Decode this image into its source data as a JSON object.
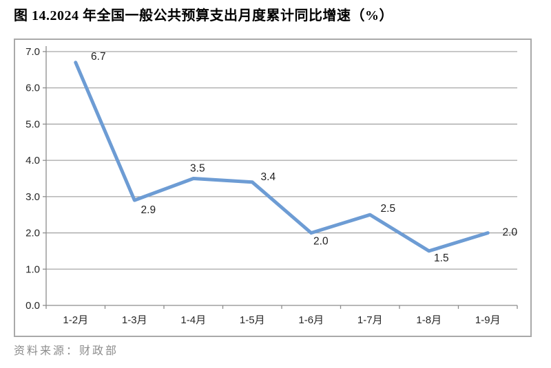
{
  "page": {
    "source_note": "资料来源：财政部"
  },
  "chart_data": {
    "type": "line",
    "title": "图 14.2024 年全国一般公共预算支出月度累计同比增速（%）",
    "categories": [
      "1-2月",
      "1-3月",
      "1-4月",
      "1-5月",
      "1-6月",
      "1-7月",
      "1-8月",
      "1-9月"
    ],
    "values": [
      6.7,
      2.9,
      3.5,
      3.4,
      2.0,
      2.5,
      1.5,
      2.0
    ],
    "data_labels": [
      "6.7",
      "2.9",
      "3.5",
      "3.4",
      "2.0",
      "2.5",
      "1.5",
      "2.0"
    ],
    "xlabel": "",
    "ylabel": "",
    "ylim": [
      0,
      7
    ],
    "ytick_step": 1,
    "ytick_labels": [
      "0.0",
      "1.0",
      "2.0",
      "3.0",
      "4.0",
      "5.0",
      "6.0",
      "7.0"
    ],
    "grid": "horizontal",
    "legend": "none",
    "colors": {
      "line": "#6d9cd4",
      "gridline": "#a6a6a6",
      "axis": "#8c8c8c",
      "tick": "#8c8c8c",
      "data_label": "#1f1f1f",
      "frame_border": "#a9a9a9",
      "source_text": "#8c8c8c"
    }
  }
}
